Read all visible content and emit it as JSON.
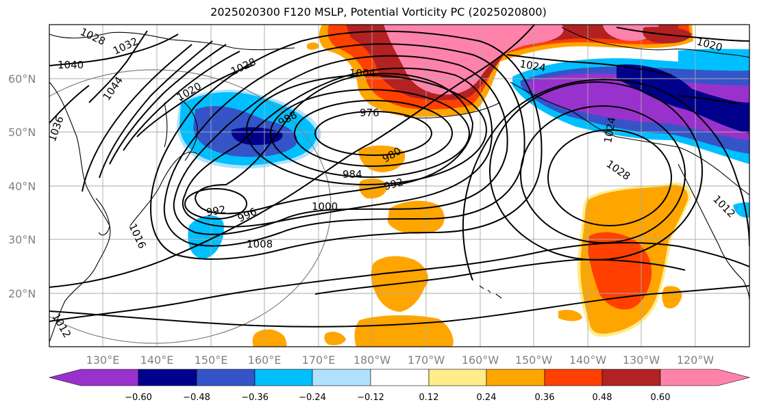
{
  "title": "2025020300 F120 MSLP, Potential Vorticity PC (2025020800)",
  "map": {
    "lon_range": [
      120,
      250
    ],
    "lat_range": [
      10,
      70
    ],
    "latitude_labels": [
      "20°N",
      "30°N",
      "40°N",
      "50°N",
      "60°N"
    ],
    "longitude_labels": [
      "130°E",
      "140°E",
      "150°E",
      "160°E",
      "170°E",
      "180°W",
      "170°W",
      "160°W",
      "150°W",
      "140°W",
      "130°W",
      "120°W"
    ],
    "gridlines": true,
    "isobar_labels": [
      "1040",
      "1032",
      "1028",
      "1044",
      "1036",
      "1028",
      "1020",
      "1004",
      "976",
      "988",
      "980",
      "984",
      "992",
      "992",
      "996",
      "1000",
      "1008",
      "1016",
      "1012",
      "1024",
      "1020",
      "1024",
      "1028",
      "1012"
    ],
    "colors": {
      "neg_0_60": "#9932cc",
      "neg_0_48": "#00008b",
      "neg_0_36": "#3454c8",
      "neg_0_24": "#00bfff",
      "neg_0_12": "#b0e2ff",
      "neutral": "#ffffff",
      "pos_0_12": "#ffec8b",
      "pos_0_24": "#ffa500",
      "pos_0_36": "#ff4000",
      "pos_0_48": "#b22222",
      "pos_0_60": "#ff82ab"
    }
  },
  "colorbar": {
    "tick_labels": [
      "−0.60",
      "−0.48",
      "−0.36",
      "−0.24",
      "−0.12",
      "0.12",
      "0.24",
      "0.36",
      "0.48",
      "0.60"
    ],
    "colors": [
      "#9932cc",
      "#00008b",
      "#3454c8",
      "#00bfff",
      "#b0e2ff",
      "#ffffff",
      "#ffec8b",
      "#ffa500",
      "#ff4000",
      "#b22222",
      "#ff82ab"
    ]
  }
}
